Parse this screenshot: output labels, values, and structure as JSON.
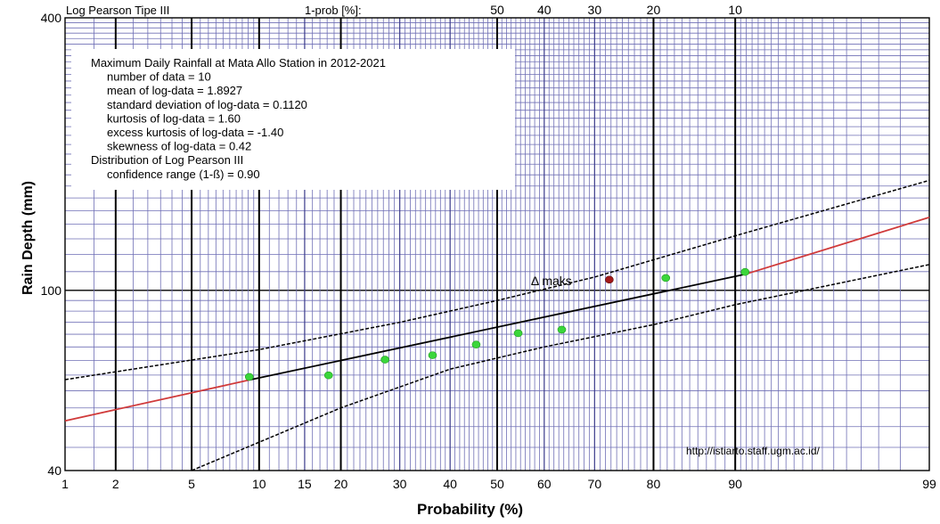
{
  "chart_data": {
    "type": "scatter",
    "xlabel": "Probability (%)",
    "ylabel": "Rain Depth (mm)",
    "y_scale": "log",
    "ylim": [
      40,
      400
    ],
    "x_scale": "probability (normal)",
    "xlim": [
      1,
      99
    ],
    "top_left_label": "Log Pearson Tipe III",
    "top_axis_label": "1-prob [%]:",
    "top_ticks": [
      "50",
      "40",
      "30",
      "20",
      "10"
    ],
    "x_ticks": [
      "1",
      "2",
      "5",
      "10",
      "15",
      "20",
      "30",
      "40",
      "50",
      "60",
      "70",
      "80",
      "90",
      "99"
    ],
    "y_ticks": [
      "400",
      "100",
      "40"
    ],
    "info_lines": [
      "Maximum Daily Rainfall at Mata Allo Station in 2012-2021",
      "number of data = 10",
      "mean of log-data = 1.8927",
      "standard deviation of log-data = 0.1120",
      "kurtosis of log-data = 1.60",
      "excess kurtosis of log-data = -1.40",
      "skewness of log-data = 0.42",
      "Distribution of Log Pearson III",
      "confidence range (1-ß) = 0.90"
    ],
    "annotation": "Δ maks",
    "url_text": "http://istiarto.staff.ugm.ac.id/",
    "observed": [
      {
        "p": 9.1,
        "y": 64.4
      },
      {
        "p": 18.2,
        "y": 64.9
      },
      {
        "p": 27.3,
        "y": 70.3
      },
      {
        "p": 36.4,
        "y": 71.9
      },
      {
        "p": 45.5,
        "y": 75.9
      },
      {
        "p": 54.5,
        "y": 80.4
      },
      {
        "p": 63.6,
        "y": 81.9
      },
      {
        "p": 72.7,
        "y": 105.6
      },
      {
        "p": 81.8,
        "y": 106.5
      },
      {
        "p": 90.9,
        "y": 109.8
      }
    ],
    "max_delta_point_index": 7,
    "fitted_line": [
      [
        1,
        51.5
      ],
      [
        9.1,
        63.4
      ],
      [
        90.9,
        108.5
      ],
      [
        99,
        145
      ]
    ],
    "confidence_upper": [
      [
        1,
        63.5
      ],
      [
        10,
        74
      ],
      [
        30,
        85
      ],
      [
        50,
        95
      ],
      [
        70,
        107
      ],
      [
        90,
        132
      ],
      [
        99,
        175
      ]
    ],
    "confidence_lower": [
      [
        5,
        40
      ],
      [
        20,
        55
      ],
      [
        40,
        67
      ],
      [
        60,
        75
      ],
      [
        80,
        84
      ],
      [
        90,
        93
      ],
      [
        99,
        114
      ]
    ],
    "colors": {
      "fit_outside": "#d03a3a",
      "fit_inside": "#000000",
      "confidence": "#000000",
      "point": "#3bd63b",
      "point_max": "#a31919",
      "grid_minor": "#6f6fb5",
      "grid_major": "#000000"
    }
  }
}
